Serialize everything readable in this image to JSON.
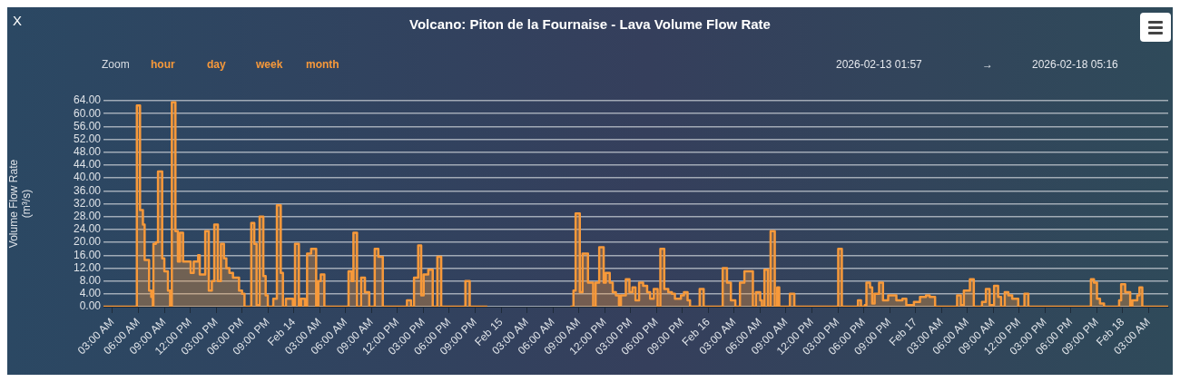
{
  "chart_data": {
    "type": "step",
    "title": "Volcano: Piton de la Fournaise - Lava Volume Flow Rate",
    "ylabel": "Volume Flow Rate (m³/s)",
    "annotations": [
      "X",
      "Zoom",
      "hour",
      "day",
      "week",
      "month",
      "2026-02-13 01:57",
      "→",
      "2026-02-18 05:16"
    ],
    "grid": "y",
    "xlim": [
      "2026-02-13T01:57",
      "2026-02-18T05:16"
    ],
    "xticks": [
      {
        "value": "2026-02-13T03:00",
        "label": "03:00 AM"
      },
      {
        "value": "2026-02-13T06:00",
        "label": "06:00 AM"
      },
      {
        "value": "2026-02-13T09:00",
        "label": "09:00 AM"
      },
      {
        "value": "2026-02-13T12:00",
        "label": "12:00 PM"
      },
      {
        "value": "2026-02-13T15:00",
        "label": "03:00 PM"
      },
      {
        "value": "2026-02-13T18:00",
        "label": "06:00 PM"
      },
      {
        "value": "2026-02-13T21:00",
        "label": "09:00 PM"
      },
      {
        "value": "2026-02-14T00:00",
        "label": "Feb 14"
      },
      {
        "value": "2026-02-14T03:00",
        "label": "03:00 AM"
      },
      {
        "value": "2026-02-14T06:00",
        "label": "06:00 AM"
      },
      {
        "value": "2026-02-14T09:00",
        "label": "09:00 AM"
      },
      {
        "value": "2026-02-14T12:00",
        "label": "12:00 PM"
      },
      {
        "value": "2026-02-14T15:00",
        "label": "03:00 PM"
      },
      {
        "value": "2026-02-14T18:00",
        "label": "06:00 PM"
      },
      {
        "value": "2026-02-14T21:00",
        "label": "09:00 PM"
      },
      {
        "value": "2026-02-15T00:00",
        "label": "Feb 15"
      },
      {
        "value": "2026-02-15T03:00",
        "label": "03:00 AM"
      },
      {
        "value": "2026-02-15T06:00",
        "label": "06:00 AM"
      },
      {
        "value": "2026-02-15T09:00",
        "label": "09:00 AM"
      },
      {
        "value": "2026-02-15T12:00",
        "label": "12:00 PM"
      },
      {
        "value": "2026-02-15T15:00",
        "label": "03:00 PM"
      },
      {
        "value": "2026-02-15T18:00",
        "label": "06:00 PM"
      },
      {
        "value": "2026-02-15T21:00",
        "label": "09:00 PM"
      },
      {
        "value": "2026-02-16T00:00",
        "label": "Feb 16"
      },
      {
        "value": "2026-02-16T03:00",
        "label": "03:00 AM"
      },
      {
        "value": "2026-02-16T06:00",
        "label": "06:00 AM"
      },
      {
        "value": "2026-02-16T09:00",
        "label": "09:00 AM"
      },
      {
        "value": "2026-02-16T12:00",
        "label": "12:00 PM"
      },
      {
        "value": "2026-02-16T15:00",
        "label": "03:00 PM"
      },
      {
        "value": "2026-02-16T18:00",
        "label": "06:00 PM"
      },
      {
        "value": "2026-02-16T21:00",
        "label": "09:00 PM"
      },
      {
        "value": "2026-02-17T00:00",
        "label": "Feb 17"
      },
      {
        "value": "2026-02-17T03:00",
        "label": "03:00 AM"
      },
      {
        "value": "2026-02-17T06:00",
        "label": "06:00 AM"
      },
      {
        "value": "2026-02-17T09:00",
        "label": "09:00 AM"
      },
      {
        "value": "2026-02-17T12:00",
        "label": "12:00 PM"
      },
      {
        "value": "2026-02-17T15:00",
        "label": "03:00 PM"
      },
      {
        "value": "2026-02-17T18:00",
        "label": "06:00 PM"
      },
      {
        "value": "2026-02-17T21:00",
        "label": "09:00 PM"
      },
      {
        "value": "2026-02-18T00:00",
        "label": "Feb 18"
      },
      {
        "value": "2026-02-18T03:00",
        "label": "03:00 AM"
      }
    ],
    "ylim": [
      0,
      64
    ],
    "yticks": [
      {
        "value": 0,
        "label": "0.00"
      },
      {
        "value": 4,
        "label": "4.00"
      },
      {
        "value": 8,
        "label": "8.00"
      },
      {
        "value": 12,
        "label": "12.00"
      },
      {
        "value": 16,
        "label": "16.00"
      },
      {
        "value": 20,
        "label": "20.00"
      },
      {
        "value": 24,
        "label": "24.00"
      },
      {
        "value": 28,
        "label": "28.00"
      },
      {
        "value": 32,
        "label": "32.00"
      },
      {
        "value": 36,
        "label": "36.00"
      },
      {
        "value": 40,
        "label": "40.00"
      },
      {
        "value": 44,
        "label": "44.00"
      },
      {
        "value": 48,
        "label": "48.00"
      },
      {
        "value": 52,
        "label": "52.00"
      },
      {
        "value": 56,
        "label": "56.00"
      },
      {
        "value": 60,
        "label": "60.00"
      },
      {
        "value": 64,
        "label": "64.00"
      }
    ],
    "x": [
      "2026-02-13T01:57",
      "2026-02-13T05:49",
      "2026-02-13T06:11",
      "2026-02-13T06:31",
      "2026-02-13T06:43",
      "2026-02-13T07:14",
      "2026-02-13T07:29",
      "2026-02-13T07:40",
      "2026-02-13T07:44",
      "2026-02-13T08:01",
      "2026-02-13T08:16",
      "2026-02-13T08:45",
      "2026-02-13T09:00",
      "2026-02-13T09:25",
      "2026-02-13T09:40",
      "2026-02-13T09:52",
      "2026-02-13T10:17",
      "2026-02-13T10:34",
      "2026-02-13T10:49",
      "2026-02-13T11:10",
      "2026-02-13T12:03",
      "2026-02-13T12:24",
      "2026-02-13T12:55",
      "2026-02-13T13:06",
      "2026-02-13T13:44",
      "2026-02-13T14:09",
      "2026-02-13T14:30",
      "2026-02-13T14:47",
      "2026-02-13T15:12",
      "2026-02-13T15:33",
      "2026-02-13T15:54",
      "2026-02-13T16:11",
      "2026-02-13T16:32",
      "2026-02-13T16:57",
      "2026-02-13T17:39",
      "2026-02-13T18:00",
      "2026-02-13T18:17",
      "2026-02-13T19:04",
      "2026-02-13T19:25",
      "2026-02-13T19:41",
      "2026-02-13T20:02",
      "2026-02-13T20:28",
      "2026-02-13T20:44",
      "2026-02-13T20:59",
      "2026-02-13T21:37",
      "2026-02-13T22:02",
      "2026-02-13T22:29",
      "2026-02-13T22:44",
      "2026-02-13T23:05",
      "2026-02-13T23:53",
      "2026-02-14T00:08",
      "2026-02-14T00:35",
      "2026-02-14T00:50",
      "2026-02-14T01:17",
      "2026-02-14T01:32",
      "2026-02-14T02:00",
      "2026-02-14T02:35",
      "2026-02-14T02:50",
      "2026-02-14T03:07",
      "2026-02-14T03:32",
      "2026-02-14T06:20",
      "2026-02-14T06:41",
      "2026-02-14T06:54",
      "2026-02-14T07:19",
      "2026-02-14T07:47",
      "2026-02-14T08:14",
      "2026-02-14T08:44",
      "2026-02-14T09:22",
      "2026-02-14T09:47",
      "2026-02-14T10:18",
      "2026-02-14T13:06",
      "2026-02-14T13:34",
      "2026-02-14T13:55",
      "2026-02-14T14:24",
      "2026-02-14T14:45",
      "2026-02-14T15:02",
      "2026-02-14T15:34",
      "2026-02-14T16:05",
      "2026-02-14T16:37",
      "2026-02-14T17:04",
      "2026-02-14T19:52",
      "2026-02-14T20:22",
      "2026-02-14T22:24",
      "2026-02-14T22:25",
      "2026-02-15T08:02",
      "2026-02-15T08:23",
      "2026-02-15T08:38",
      "2026-02-15T09:07",
      "2026-02-15T09:26",
      "2026-02-15T10:04",
      "2026-02-15T10:40",
      "2026-02-15T10:57",
      "2026-02-15T11:22",
      "2026-02-15T11:53",
      "2026-02-15T12:08",
      "2026-02-15T12:35",
      "2026-02-15T12:56",
      "2026-02-15T13:18",
      "2026-02-15T13:39",
      "2026-02-15T13:53",
      "2026-02-15T14:27",
      "2026-02-15T14:52",
      "2026-02-15T15:13",
      "2026-02-15T15:34",
      "2026-02-15T15:59",
      "2026-02-15T16:27",
      "2026-02-15T16:55",
      "2026-02-15T17:16",
      "2026-02-15T17:41",
      "2026-02-15T18:08",
      "2026-02-15T18:27",
      "2026-02-15T18:54",
      "2026-02-15T19:22",
      "2026-02-15T19:47",
      "2026-02-15T20:08",
      "2026-02-15T20:50",
      "2026-02-15T21:11",
      "2026-02-15T21:36",
      "2026-02-15T21:53",
      "2026-02-15T23:00",
      "2026-02-15T23:28",
      "2026-02-16T01:40",
      "2026-02-16T02:10",
      "2026-02-16T02:37",
      "2026-02-16T03:08",
      "2026-02-16T03:40",
      "2026-02-16T04:11",
      "2026-02-16T05:10",
      "2026-02-16T05:31",
      "2026-02-16T06:01",
      "2026-02-16T06:13",
      "2026-02-16T06:30",
      "2026-02-16T06:55",
      "2026-02-16T07:13",
      "2026-02-16T07:42",
      "2026-02-16T07:59",
      "2026-02-16T08:13",
      "2026-02-16T09:27",
      "2026-02-16T09:58",
      "2026-02-16T15:03",
      "2026-02-16T15:28",
      "2026-02-16T17:20",
      "2026-02-16T17:41",
      "2026-02-16T18:08",
      "2026-02-16T18:19",
      "2026-02-16T18:44",
      "2026-02-16T18:59",
      "2026-02-16T19:16",
      "2026-02-16T19:47",
      "2026-02-16T20:14",
      "2026-02-16T20:50",
      "2026-02-16T21:47",
      "2026-02-16T22:29",
      "2026-02-16T22:56",
      "2026-02-16T23:49",
      "2026-02-17T00:31",
      "2026-02-17T01:13",
      "2026-02-17T01:38",
      "2026-02-17T02:16",
      "2026-02-17T04:49",
      "2026-02-17T05:15",
      "2026-02-17T05:36",
      "2026-02-17T06:18",
      "2026-02-17T06:45",
      "2026-02-17T07:42",
      "2026-02-17T08:09",
      "2026-02-17T08:35",
      "2026-02-17T09:06",
      "2026-02-17T09:34",
      "2026-02-17T09:55",
      "2026-02-17T10:20",
      "2026-02-17T10:45",
      "2026-02-17T11:12",
      "2026-02-17T11:54",
      "2026-02-17T12:37",
      "2026-02-17T13:04",
      "2026-02-17T20:19",
      "2026-02-17T20:40",
      "2026-02-17T21:01",
      "2026-02-17T21:22",
      "2026-02-17T21:50",
      "2026-02-17T23:35",
      "2026-02-17T23:49",
      "2026-02-18T00:17",
      "2026-02-18T00:52",
      "2026-02-18T01:07",
      "2026-02-18T01:41",
      "2026-02-18T01:56",
      "2026-02-18T02:16",
      "2026-02-18T05:16"
    ],
    "series": [
      {
        "color": "#f7993a",
        "values": [
          0,
          62.5,
          30,
          25.5,
          14.5,
          5,
          3,
          0,
          19.5,
          20,
          42,
          15,
          11,
          5,
          0,
          63.5,
          23.5,
          14,
          23,
          14,
          10.5,
          14,
          16,
          10,
          23.5,
          5,
          8,
          25.5,
          8,
          19.5,
          15,
          12,
          10.5,
          9,
          5,
          4,
          0,
          26,
          19.5,
          0.5,
          28,
          9.5,
          3.5,
          0,
          2.5,
          31.5,
          10.5,
          0,
          2.5,
          0.5,
          19.5,
          0,
          2.5,
          0,
          16.5,
          18,
          0,
          8,
          10,
          0,
          11,
          8,
          23,
          0,
          9,
          4.5,
          0,
          18,
          15.5,
          0,
          2,
          0,
          9,
          19,
          3.5,
          10,
          11.5,
          0,
          15.5,
          0,
          8,
          0,
          0,
          null,
          0,
          5,
          29,
          4.5,
          16.5,
          7.5,
          0,
          7.5,
          18.5,
          7.5,
          10.5,
          7.5,
          4.5,
          3.5,
          0.5,
          3.5,
          8.5,
          4.5,
          6,
          2,
          7.5,
          6.5,
          4.5,
          2.5,
          5.5,
          0,
          18,
          5.5,
          4.5,
          4,
          2.5,
          3.5,
          4.5,
          2,
          0,
          5.5,
          0,
          12,
          7.5,
          2,
          0,
          7.5,
          11,
          0,
          4.5,
          2,
          0,
          11.5,
          0,
          23.5,
          0,
          6,
          0,
          4,
          0,
          18,
          0,
          2,
          0,
          0.5,
          7.5,
          6,
          1,
          4,
          7.5,
          2,
          3.5,
          2,
          2.5,
          0.5,
          1.5,
          3,
          3.5,
          3,
          0,
          3.5,
          0.5,
          5,
          8.5,
          0,
          1.5,
          5.5,
          0.5,
          6.5,
          3,
          0,
          4.5,
          3.5,
          2.5,
          0,
          4,
          0,
          8.5,
          7.5,
          2.5,
          1,
          0,
          2,
          7,
          4.5,
          0,
          2,
          3.5,
          6,
          0,
          0
        ]
      }
    ]
  }
}
